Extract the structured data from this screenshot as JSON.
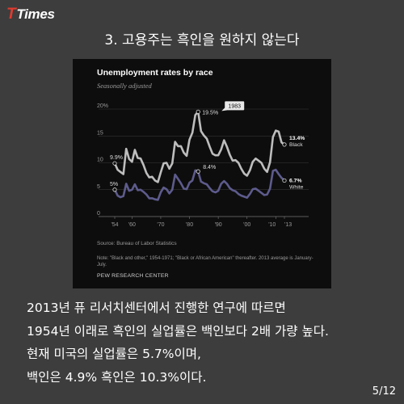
{
  "logo": {
    "mark": "T",
    "text": "Times"
  },
  "heading": "3. 고용주는 흑인을 원하지 않는다",
  "chart_data": {
    "type": "line",
    "title": "Unemployment rates by race",
    "subtitle": "Seasonally adjusted",
    "y_ticks": [
      "20%",
      "15",
      "10",
      "5",
      "0"
    ],
    "ylim": [
      0,
      20
    ],
    "x_ticks": [
      "'54",
      "'60",
      "'70",
      "'80",
      "'90",
      "'00",
      "'10",
      "'13"
    ],
    "xlim": [
      1954,
      2013
    ],
    "grid": true,
    "series": [
      {
        "name": "Black",
        "color": "#bdbdbd",
        "x": [
          1954,
          1955,
          1956,
          1957,
          1958,
          1959,
          1960,
          1961,
          1962,
          1963,
          1964,
          1965,
          1966,
          1967,
          1968,
          1969,
          1970,
          1971,
          1972,
          1973,
          1974,
          1975,
          1976,
          1977,
          1978,
          1979,
          1980,
          1981,
          1982,
          1983,
          1984,
          1985,
          1986,
          1987,
          1988,
          1989,
          1990,
          1991,
          1992,
          1993,
          1994,
          1995,
          1996,
          1997,
          1998,
          1999,
          2000,
          2001,
          2002,
          2003,
          2004,
          2005,
          2006,
          2007,
          2008,
          2009,
          2010,
          2011,
          2012,
          2013
        ],
        "y": [
          9.9,
          8.7,
          8.3,
          7.9,
          12.6,
          10.7,
          10.2,
          12.4,
          10.9,
          10.8,
          9.6,
          8.1,
          7.3,
          7.4,
          6.7,
          6.4,
          8.2,
          9.9,
          10.0,
          8.9,
          9.9,
          13.9,
          13.1,
          13.1,
          11.9,
          11.3,
          14.3,
          15.6,
          18.9,
          19.5,
          15.9,
          15.1,
          14.5,
          13.0,
          11.7,
          11.4,
          11.4,
          12.5,
          14.2,
          13.0,
          11.5,
          10.4,
          10.5,
          10.0,
          8.9,
          8.0,
          7.6,
          8.6,
          10.2,
          10.8,
          10.4,
          10.0,
          8.9,
          8.3,
          10.1,
          14.8,
          16.0,
          15.8,
          13.8,
          13.4
        ]
      },
      {
        "name": "White",
        "color": "#5d5b8c",
        "x": [
          1954,
          1955,
          1956,
          1957,
          1958,
          1959,
          1960,
          1961,
          1962,
          1963,
          1964,
          1965,
          1966,
          1967,
          1968,
          1969,
          1970,
          1971,
          1972,
          1973,
          1974,
          1975,
          1976,
          1977,
          1978,
          1979,
          1980,
          1981,
          1982,
          1983,
          1984,
          1985,
          1986,
          1987,
          1988,
          1989,
          1990,
          1991,
          1992,
          1993,
          1994,
          1995,
          1996,
          1997,
          1998,
          1999,
          2000,
          2001,
          2002,
          2003,
          2004,
          2005,
          2006,
          2007,
          2008,
          2009,
          2010,
          2011,
          2012,
          2013
        ],
        "y": [
          5.0,
          3.9,
          3.6,
          3.8,
          6.1,
          4.8,
          5.0,
          6.0,
          4.9,
          5.0,
          4.6,
          4.1,
          3.4,
          3.4,
          3.2,
          3.1,
          4.5,
          5.4,
          5.1,
          4.3,
          5.0,
          7.8,
          7.0,
          6.2,
          5.2,
          5.1,
          6.3,
          6.7,
          8.6,
          8.4,
          6.5,
          6.2,
          6.0,
          5.3,
          4.7,
          4.5,
          4.8,
          6.1,
          6.6,
          6.1,
          5.3,
          4.9,
          4.7,
          4.2,
          3.9,
          3.7,
          3.5,
          4.2,
          5.1,
          5.2,
          4.8,
          4.4,
          4.0,
          4.1,
          5.2,
          8.5,
          8.7,
          7.9,
          7.2,
          6.7
        ]
      }
    ],
    "annotations": {
      "black_start": "9.9%",
      "white_start": "5%",
      "peak": "19.5%",
      "peak_year": "1983",
      "white_peak": "8.4%",
      "black_end": "13.4%",
      "black_end_label": "Black",
      "white_end": "6.7%",
      "white_end_label": "White"
    },
    "source": "Source: Bureau of Labor Statistics",
    "note": "Note: \"Black and other,\" 1954-1971; \"Black or African American\" thereafter. 2013 average is January-July.",
    "credit": "PEW RESEARCH CENTER"
  },
  "body_lines": [
    "2013년 퓨 리서치센터에서 진행한 연구에 따르면",
    "1954년 이래로 흑인의 실업률은 백인보다 2배 가량 높다.",
    "현재 미국의 실업률은 5.7%이며,",
    "백인은 4.9% 흑인은 10.3%이다."
  ],
  "page_number": "5/12"
}
